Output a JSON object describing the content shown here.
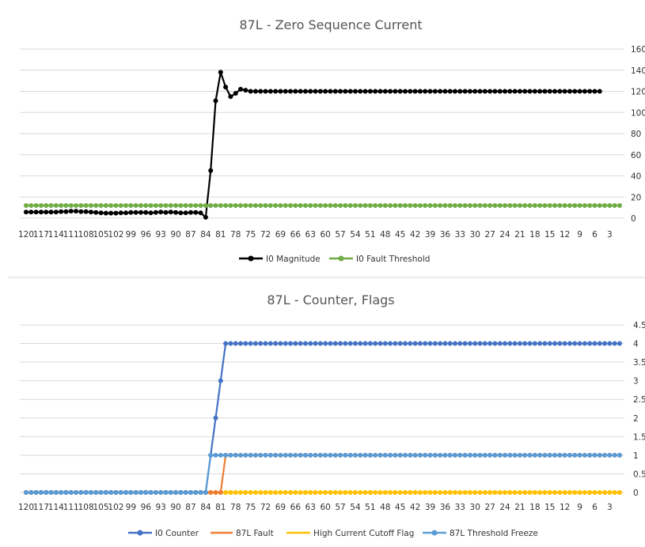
{
  "chart_data": [
    {
      "type": "line",
      "title": "87L - Zero Sequence Current",
      "ylim": [
        0,
        160
      ],
      "yticks": [
        0,
        20,
        40,
        60,
        80,
        100,
        120,
        140,
        160
      ],
      "x_start": 120,
      "x_end": 1,
      "x_tick_step": 3,
      "grid": true,
      "legend_position": "bottom",
      "series": [
        {
          "name": "I0 Magnitude",
          "color": "#000000",
          "values": [
            5.8,
            5.8,
            5.8,
            5.8,
            5.8,
            5.8,
            5.8,
            6.2,
            6.2,
            6.6,
            6.6,
            6.2,
            6.2,
            5.8,
            5.4,
            5.0,
            4.8,
            4.8,
            4.8,
            5.0,
            5.0,
            5.4,
            5.4,
            5.4,
            5.4,
            5.0,
            5.4,
            5.8,
            5.4,
            5.8,
            5.4,
            5.0,
            5.0,
            5.4,
            5.4,
            5.0,
            0.8,
            45,
            111,
            138,
            124,
            115,
            118,
            122,
            121,
            120,
            120,
            120,
            120,
            120,
            120,
            120,
            120,
            120,
            120,
            120,
            120,
            120,
            120,
            120,
            120,
            120,
            120,
            120,
            120,
            120,
            120,
            120,
            120,
            120,
            120,
            120,
            120,
            120,
            120,
            120,
            120,
            120,
            120,
            120,
            120,
            120,
            120,
            120,
            120,
            120,
            120,
            120,
            120,
            120,
            120,
            120,
            120,
            120,
            120,
            120,
            120,
            120,
            120,
            120,
            120,
            120,
            120,
            120,
            120,
            120,
            120,
            120,
            120,
            120,
            120,
            120,
            120,
            120,
            120,
            120
          ]
        },
        {
          "name": "I0 Fault Threshold",
          "color": "#70AD47",
          "constant": 12
        }
      ]
    },
    {
      "type": "line",
      "title": "87L - Counter, Flags",
      "ylim": [
        0,
        4.5
      ],
      "yticks": [
        0,
        0.5,
        1,
        1.5,
        2,
        2.5,
        3,
        3.5,
        4,
        4.5
      ],
      "x_start": 120,
      "x_end": 1,
      "x_tick_step": 3,
      "grid": true,
      "legend_position": "bottom",
      "series": [
        {
          "name": "I0 Counter",
          "color": "#4472C4",
          "steps": [
            [
              0,
              0
            ],
            [
              37,
              1
            ],
            [
              38,
              2
            ],
            [
              39,
              3
            ],
            [
              40,
              4
            ]
          ]
        },
        {
          "name": "87L Fault",
          "color": "#ED7D31",
          "steps": [
            [
              0,
              0
            ],
            [
              40,
              1
            ]
          ]
        },
        {
          "name": "High Current Cutoff Flag",
          "color": "#FFC000",
          "steps": [
            [
              0,
              0
            ]
          ]
        },
        {
          "name": "87L Threshold Freeze",
          "color": "#5B9BD5",
          "steps": [
            [
              0,
              0
            ],
            [
              37,
              1
            ]
          ]
        }
      ]
    }
  ]
}
